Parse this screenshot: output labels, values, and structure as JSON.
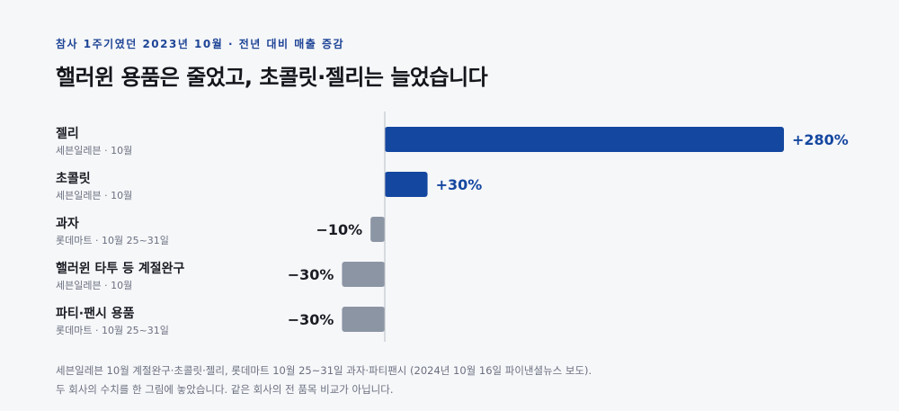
{
  "kicker": "참사 1주기였던 2023년 10월 · 전년 대비 매출 증감",
  "title": "핼러윈 용품은 줄었고, 초콜릿·젤리는 늘었습니다",
  "colors": {
    "positive": "#1447a0",
    "negative": "#8c95a4",
    "axis": "#b8bcc4",
    "positive_text": "#1447a0",
    "negative_text": "#1a1d24"
  },
  "chart_data": {
    "type": "bar",
    "orientation": "horizontal",
    "categories": [
      "젤리",
      "초콜릿",
      "과자",
      "핼러윈 타투 등 계절완구",
      "파티·팬시 용품"
    ],
    "sources": [
      "세븐일레븐 · 10월",
      "세븐일레븐 · 10월",
      "롯데마트 · 10월 25~31일",
      "세븐일레븐 · 10월",
      "롯데마트 · 10월 25~31일"
    ],
    "values": [
      280,
      30,
      -10,
      -30,
      -30
    ],
    "value_labels": [
      "+280%",
      "+30%",
      "−10%",
      "−30%",
      "−30%"
    ],
    "unit": "%",
    "xlim": [
      -30,
      280
    ]
  },
  "footer": {
    "line1": "세븐일레븐 10월 계절완구·초콜릿·젤리, 롯데마트 10월 25~31일 과자·파티팬시 (2024년 10월 16일 파이낸셜뉴스 보도).",
    "line2": "두 회사의 수치를 한 그림에 놓았습니다. 같은 회사의 전 품목 비교가 아닙니다."
  }
}
